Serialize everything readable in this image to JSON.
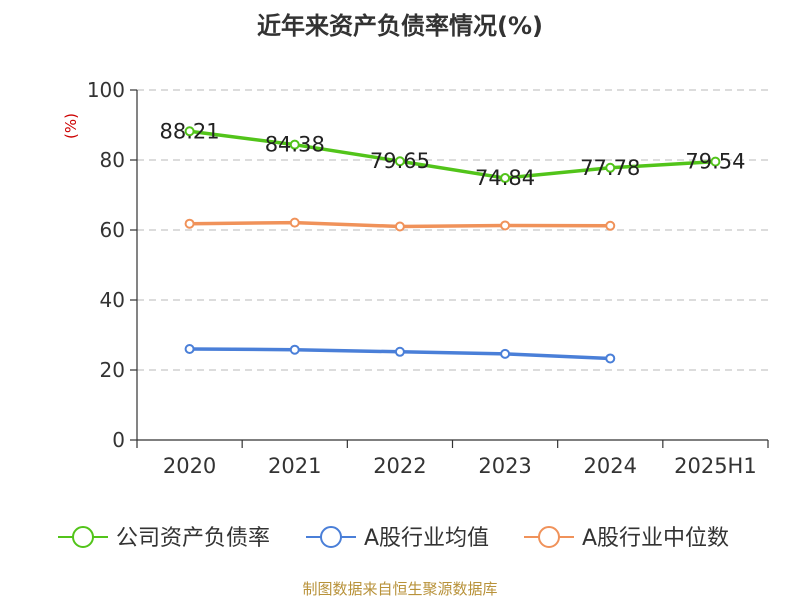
{
  "chart_data": {
    "type": "line",
    "title": "近年来资产负债率情况(%)",
    "ylabel": "(%)",
    "ylim": [
      0,
      100
    ],
    "yticks": [
      0,
      20,
      40,
      60,
      80,
      100
    ],
    "categories": [
      "2020",
      "2021",
      "2022",
      "2023",
      "2024",
      "2025H1"
    ],
    "series": [
      {
        "name": "公司资产负债率",
        "color": "#52c41a",
        "values": [
          88.21,
          84.38,
          79.65,
          74.84,
          77.78,
          79.54
        ],
        "labels": [
          "88.21",
          "84.38",
          "79.65",
          "74.84",
          "77.78",
          "79.54"
        ]
      },
      {
        "name": "A股行业均值",
        "color": "#4a7fd8",
        "values": [
          26.0,
          25.8,
          25.2,
          24.6,
          23.3,
          null
        ]
      },
      {
        "name": "A股行业中位数",
        "color": "#f0925a",
        "values": [
          61.8,
          62.1,
          61.0,
          61.3,
          61.2,
          null
        ]
      }
    ],
    "grid": true,
    "legend_position": "bottom"
  },
  "source_note": "制图数据来自恒生聚源数据库"
}
